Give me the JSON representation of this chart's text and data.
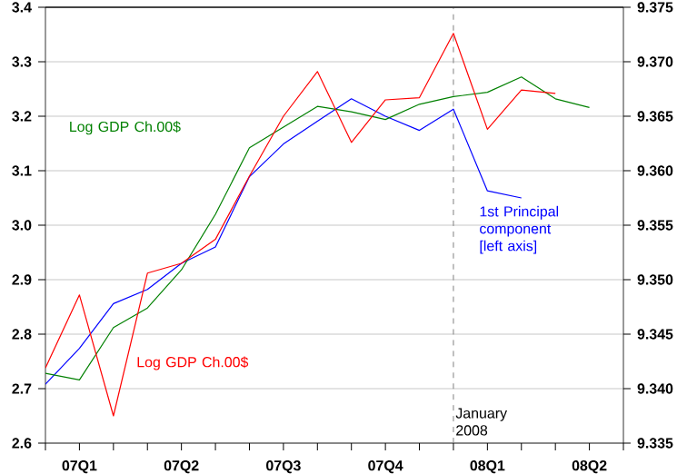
{
  "chart_data": {
    "type": "line",
    "x": [
      "2007-01",
      "2007-02",
      "2007-03",
      "2007-04",
      "2007-05",
      "2007-06",
      "2007-07",
      "2007-08",
      "2007-09",
      "2007-10",
      "2007-11",
      "2007-12",
      "2008-01",
      "2008-02",
      "2008-03",
      "2008-04",
      "2008-05"
    ],
    "series": [
      {
        "name": "1st Principal component [left axis]",
        "color": "#0000ff",
        "values": [
          2.708,
          2.774,
          2.856,
          2.882,
          2.93,
          2.96,
          3.089,
          3.149,
          3.191,
          3.232,
          3.2,
          3.174,
          3.213,
          3.063,
          3.05,
          null,
          null
        ]
      },
      {
        "name": "Log GDP Ch.00$",
        "color": "#008000",
        "axis": "y2",
        "values": [
          9.3414,
          9.3408,
          9.3456,
          9.3474,
          9.3509,
          9.356,
          9.3621,
          9.364,
          9.3659,
          9.3654,
          9.3647,
          9.3661,
          9.3668,
          9.3672,
          9.3686,
          9.3666,
          9.3658
        ]
      },
      {
        "name": "Log GDP Ch.00$",
        "color": "#ff0000",
        "axis": "y2",
        "values": [
          9.3419,
          9.3486,
          9.3375,
          9.3506,
          9.3515,
          9.3537,
          9.3595,
          9.365,
          9.3691,
          9.3626,
          9.3665,
          9.3667,
          9.3726,
          9.3638,
          9.3674,
          9.3671,
          null
        ]
      }
    ],
    "xlim": [
      "2007-01",
      "2008-06"
    ],
    "xticks": [
      {
        "value": "2007-01",
        "label": null
      },
      {
        "value": "2007-02",
        "label": "07Q1"
      },
      {
        "value": "2007-03",
        "label": null
      },
      {
        "value": "2007-04",
        "label": null
      },
      {
        "value": "2007-05",
        "label": "07Q2"
      },
      {
        "value": "2007-06",
        "label": null
      },
      {
        "value": "2007-07",
        "label": null
      },
      {
        "value": "2007-08",
        "label": "07Q3"
      },
      {
        "value": "2007-09",
        "label": null
      },
      {
        "value": "2007-10",
        "label": null
      },
      {
        "value": "2007-11",
        "label": "07Q4"
      },
      {
        "value": "2007-12",
        "label": null
      },
      {
        "value": "2008-01",
        "label": null
      },
      {
        "value": "2008-02",
        "label": "08Q1"
      },
      {
        "value": "2008-03",
        "label": null
      },
      {
        "value": "2008-04",
        "label": null
      },
      {
        "value": "2008-05",
        "label": "08Q2"
      },
      {
        "value": "2008-06",
        "label": null
      }
    ],
    "ylim": [
      2.6,
      3.4
    ],
    "yticks": [
      {
        "value": 2.6,
        "label": "2.6"
      },
      {
        "value": 2.7,
        "label": "2.7"
      },
      {
        "value": 2.8,
        "label": "2.8"
      },
      {
        "value": 2.9,
        "label": "2.9"
      },
      {
        "value": 3.0,
        "label": "3.0"
      },
      {
        "value": 3.1,
        "label": "3.1"
      },
      {
        "value": 3.2,
        "label": "3.2"
      },
      {
        "value": 3.3,
        "label": "3.3"
      },
      {
        "value": 3.4,
        "label": "3.4"
      }
    ],
    "y2lim": [
      9.335,
      9.375
    ],
    "y2ticks": [
      {
        "value": 9.335,
        "label": "9.335"
      },
      {
        "value": 9.34,
        "label": "9.340"
      },
      {
        "value": 9.345,
        "label": "9.345"
      },
      {
        "value": 9.35,
        "label": "9.350"
      },
      {
        "value": 9.355,
        "label": "9.355"
      },
      {
        "value": 9.36,
        "label": "9.360"
      },
      {
        "value": 9.365,
        "label": "9.365"
      },
      {
        "value": 9.37,
        "label": "9.370"
      },
      {
        "value": 9.375,
        "label": "9.375"
      }
    ],
    "ref_lines": [
      {
        "axis": "x",
        "value": "2008-01",
        "label": "January 2008",
        "color": "#808080",
        "line_style": "dashed"
      }
    ],
    "grid": "y",
    "marker": "none",
    "line_style": "solid"
  }
}
